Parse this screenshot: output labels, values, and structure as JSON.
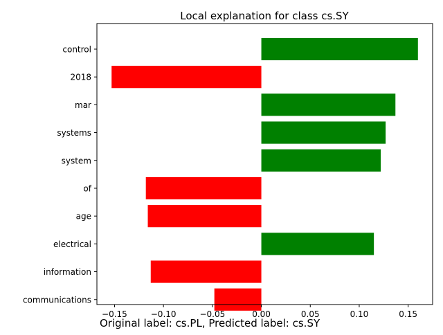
{
  "chart_data": {
    "type": "bar",
    "orientation": "horizontal",
    "title": "Local explanation for class cs.SY",
    "xlabel": "",
    "ylabel": "",
    "categories": [
      "control",
      "2018",
      "mar",
      "systems",
      "system",
      "of",
      "age",
      "electrical",
      "information",
      "communications"
    ],
    "values": [
      0.16,
      -0.153,
      0.137,
      0.127,
      0.122,
      -0.118,
      -0.116,
      0.115,
      -0.113,
      -0.048
    ],
    "xlim": [
      -0.168,
      0.175
    ],
    "xticks": [
      -0.15,
      -0.1,
      -0.05,
      0.0,
      0.05,
      0.1,
      0.15
    ],
    "xtick_labels": [
      "−0.15",
      "−0.10",
      "−0.05",
      "0.00",
      "0.05",
      "0.10",
      "0.15"
    ],
    "grid": false,
    "colors": {
      "positive": "#008000",
      "negative": "#ff0000"
    }
  },
  "caption": "Original label: cs.PL, Predicted label: cs.SY"
}
